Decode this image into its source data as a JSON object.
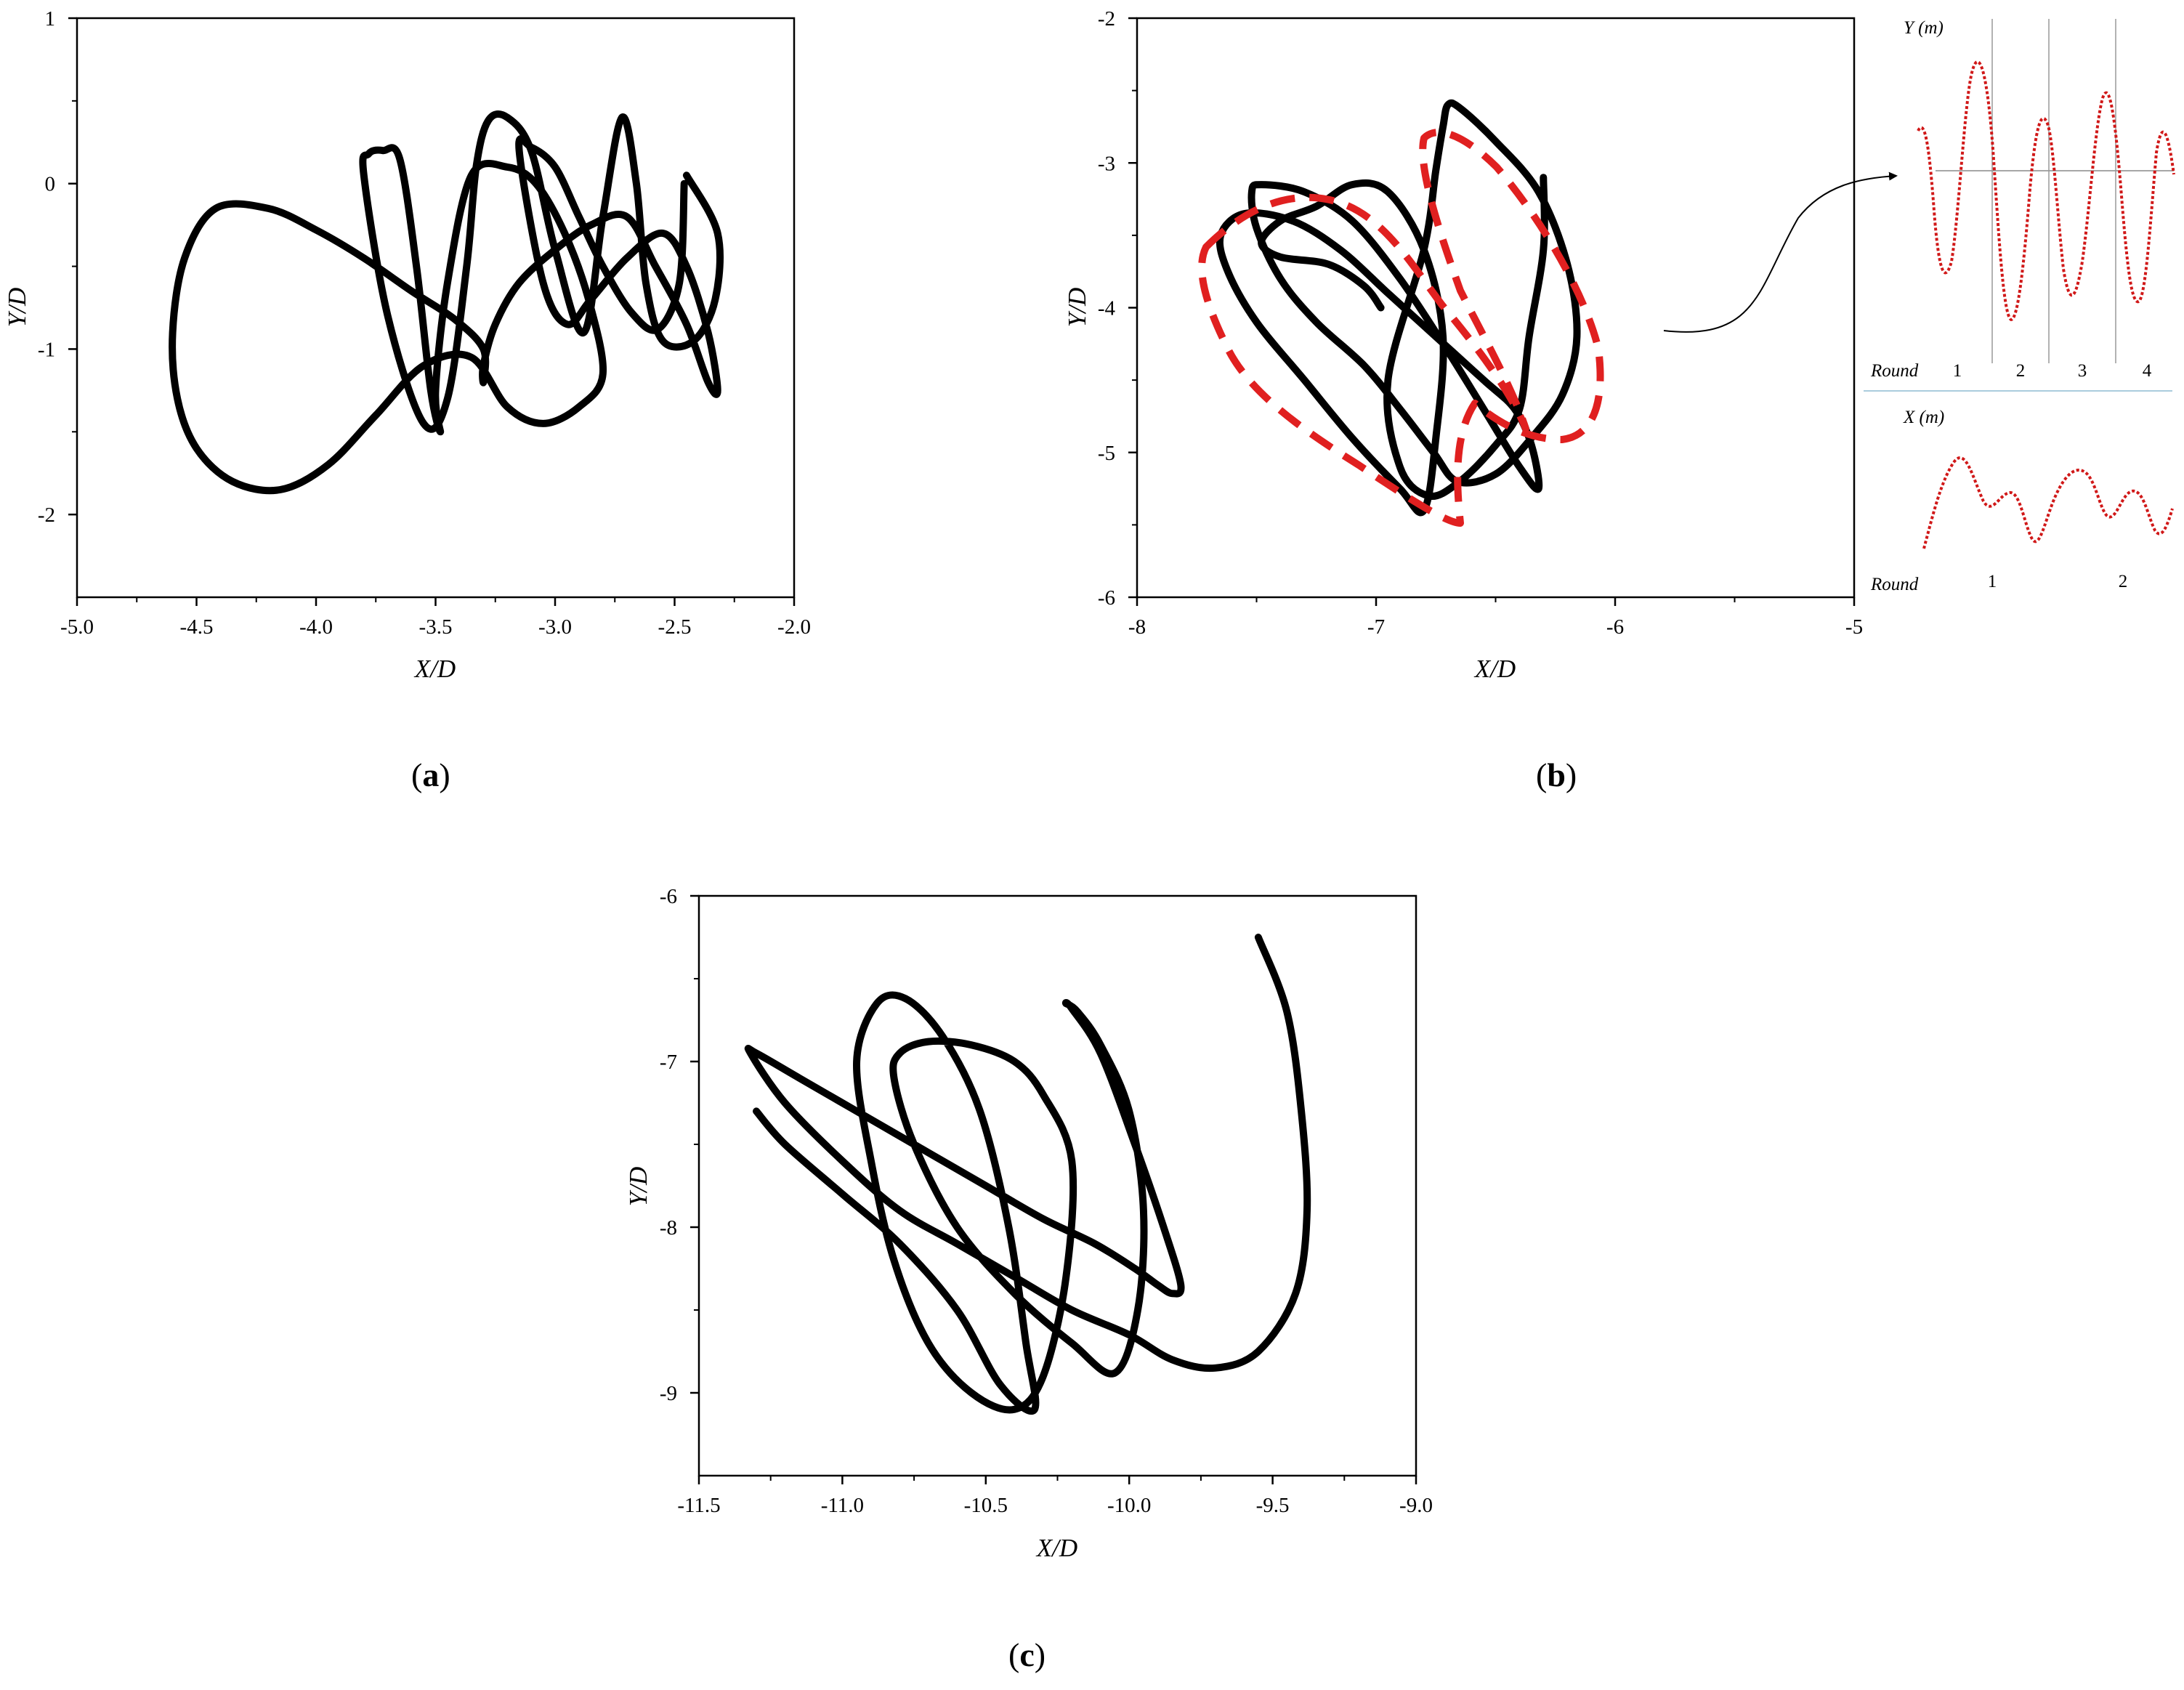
{
  "chart_data": [
    {
      "type": "line",
      "panel": "a",
      "xlabel": "X/D",
      "ylabel": "Y/D",
      "xlim": [
        -5.0,
        -2.0
      ],
      "ylim": [
        -2.5,
        1.0
      ],
      "xticks": [
        "-5.0",
        "-4.5",
        "-4.0",
        "-3.5",
        "-3.0",
        "-2.5",
        "-2.0"
      ],
      "yticks": [
        "1",
        "0",
        "-1",
        "-2"
      ],
      "series": [
        {
          "x": [
            -2.45,
            -2.32,
            -2.33,
            -2.42,
            -2.55,
            -2.62,
            -2.66,
            -2.72,
            -2.8,
            -2.88,
            -3.0,
            -3.1,
            -3.2,
            -3.28,
            -3.33,
            -3.37,
            -3.45,
            -3.55,
            -3.7,
            -3.8,
            -3.78,
            -3.72,
            -3.65,
            -3.58,
            -3.52,
            -3.48,
            -3.5,
            -3.45,
            -3.35,
            -3.2,
            -3.08,
            -2.96,
            -2.86,
            -2.8,
            -2.9,
            -3.05,
            -3.2,
            -3.35,
            -3.55,
            -3.75,
            -3.95,
            -4.15,
            -4.35,
            -4.5,
            -4.58,
            -4.6,
            -4.55,
            -4.42,
            -4.2,
            -4.0,
            -3.8,
            -3.6,
            -3.42,
            -3.3,
            -3.3,
            -3.3,
            -3.25,
            -3.15,
            -3.0,
            -2.85,
            -2.7,
            -2.58,
            -2.45,
            -2.36,
            -2.32,
            -2.36,
            -2.45,
            -2.55,
            -2.7,
            -2.85,
            -2.95,
            -3.05,
            -3.15,
            -3.1,
            -3.0,
            -2.9,
            -2.8,
            -2.68,
            -2.57,
            -2.48,
            -2.46
          ],
          "y": [
            0.05,
            -0.3,
            -0.7,
            -0.95,
            -0.95,
            -0.6,
            0.0,
            0.4,
            -0.2,
            -0.9,
            -0.4,
            0.2,
            0.4,
            0.38,
            0.1,
            -0.5,
            -1.3,
            -1.45,
            -0.8,
            0.05,
            0.18,
            0.2,
            0.15,
            -0.5,
            -1.25,
            -1.5,
            -1.25,
            -0.6,
            0.05,
            0.1,
            0.0,
            -0.3,
            -0.7,
            -1.15,
            -1.35,
            -1.45,
            -1.35,
            -1.05,
            -1.1,
            -1.4,
            -1.7,
            -1.85,
            -1.8,
            -1.6,
            -1.3,
            -0.9,
            -0.45,
            -0.15,
            -0.15,
            -0.28,
            -0.45,
            -0.65,
            -0.82,
            -1.0,
            -1.2,
            -1.1,
            -0.85,
            -0.6,
            -0.4,
            -0.25,
            -0.2,
            -0.5,
            -0.85,
            -1.2,
            -1.25,
            -0.9,
            -0.5,
            -0.3,
            -0.45,
            -0.7,
            -0.85,
            -0.6,
            0.2,
            0.22,
            0.1,
            -0.2,
            -0.5,
            -0.78,
            -0.88,
            -0.6,
            0.0
          ]
        }
      ]
    },
    {
      "type": "line",
      "panel": "b",
      "xlabel": "X/D",
      "ylabel": "Y/D",
      "xlim": [
        -8,
        -5
      ],
      "ylim": [
        -6,
        -2
      ],
      "xticks": [
        "-8",
        "-7",
        "-6",
        "-5"
      ],
      "yticks": [
        "-2",
        "-3",
        "-4",
        "-5",
        "-6"
      ],
      "series": [
        {
          "x": [
            -6.3,
            -6.3,
            -6.36,
            -6.4,
            -6.5,
            -6.65,
            -6.78,
            -6.9,
            -6.95,
            -6.8,
            -6.75,
            -6.72,
            -6.7,
            -6.65,
            -6.5,
            -6.32,
            -6.2,
            -6.16,
            -6.22,
            -6.35,
            -6.5,
            -6.66,
            -6.76,
            -6.9,
            -7.05,
            -7.25,
            -7.4,
            -7.5,
            -7.52,
            -7.48,
            -7.3,
            -7.1,
            -6.9,
            -6.7,
            -6.55,
            -6.4,
            -6.32,
            -6.35,
            -6.42,
            -6.55,
            -6.75,
            -6.95,
            -7.15,
            -7.35,
            -7.55,
            -7.65,
            -7.62,
            -7.5,
            -7.3,
            -7.1,
            -6.9,
            -6.8,
            -6.75,
            -6.72,
            -6.8,
            -6.95,
            -7.1,
            -7.25,
            -7.4,
            -7.48,
            -7.4,
            -7.2,
            -7.05,
            -6.98
          ],
          "y": [
            -3.1,
            -3.6,
            -4.2,
            -4.7,
            -4.95,
            -5.2,
            -5.3,
            -5.1,
            -4.5,
            -3.6,
            -3.05,
            -2.75,
            -2.6,
            -2.62,
            -2.85,
            -3.2,
            -3.7,
            -4.2,
            -4.6,
            -4.9,
            -5.15,
            -5.2,
            -5.0,
            -4.7,
            -4.4,
            -4.1,
            -3.8,
            -3.45,
            -3.2,
            -3.15,
            -3.2,
            -3.4,
            -3.8,
            -4.3,
            -4.7,
            -5.1,
            -5.25,
            -4.95,
            -4.7,
            -4.5,
            -4.2,
            -3.9,
            -3.6,
            -3.4,
            -3.35,
            -3.5,
            -3.75,
            -4.1,
            -4.5,
            -4.9,
            -5.25,
            -5.4,
            -4.9,
            -4.2,
            -3.6,
            -3.2,
            -3.15,
            -3.3,
            -3.4,
            -3.55,
            -3.65,
            -3.7,
            -3.85,
            -4.0
          ]
        }
      ],
      "inset_y": {
        "title": "Y (m)",
        "round_label": "Round",
        "rounds": [
          "1",
          "2",
          "3",
          "4"
        ]
      },
      "inset_x": {
        "title": "X (m)",
        "round_label": "Round",
        "rounds": [
          "1",
          "2"
        ]
      }
    },
    {
      "type": "line",
      "panel": "c",
      "xlabel": "X/D",
      "ylabel": "Y/D",
      "xlim": [
        -11.5,
        -9.0
      ],
      "ylim": [
        -9.5,
        -6.0
      ],
      "xticks": [
        "-11.5",
        "-11.0",
        "-10.5",
        "-10.0",
        "-9.5",
        "-9.0"
      ],
      "yticks": [
        "-6",
        "-7",
        "-8",
        "-9"
      ],
      "series": [
        {
          "x": [
            -9.55,
            -9.45,
            -9.4,
            -9.38,
            -9.42,
            -9.55,
            -9.7,
            -9.85,
            -10.0,
            -10.2,
            -10.4,
            -10.6,
            -10.8,
            -11.0,
            -11.2,
            -11.32,
            -11.3,
            -11.15,
            -10.9,
            -10.7,
            -10.5,
            -10.3,
            -10.12,
            -9.98,
            -9.9,
            -9.85,
            -9.82,
            -9.88,
            -9.98,
            -10.1,
            -10.2,
            -10.22,
            -10.18,
            -10.1,
            -10.0,
            -9.95,
            -9.97,
            -10.05,
            -10.2,
            -10.4,
            -10.6,
            -10.75,
            -10.82,
            -10.8,
            -10.7,
            -10.55,
            -10.4,
            -10.3,
            -10.2,
            -10.22,
            -10.3,
            -10.4,
            -10.55,
            -10.7,
            -10.82,
            -10.9,
            -10.95,
            -10.88,
            -10.78,
            -10.65,
            -10.52,
            -10.42,
            -10.36,
            -10.33,
            -10.45,
            -10.6,
            -10.8,
            -11.0,
            -11.2,
            -11.3
          ],
          "y": [
            -6.25,
            -6.7,
            -7.3,
            -7.9,
            -8.4,
            -8.75,
            -8.85,
            -8.8,
            -8.65,
            -8.5,
            -8.3,
            -8.1,
            -7.9,
            -7.6,
            -7.25,
            -6.95,
            -6.95,
            -7.1,
            -7.35,
            -7.55,
            -7.75,
            -7.95,
            -8.1,
            -8.25,
            -8.35,
            -8.4,
            -8.35,
            -8.0,
            -7.5,
            -6.95,
            -6.68,
            -6.65,
            -6.7,
            -6.9,
            -7.3,
            -7.9,
            -8.5,
            -8.88,
            -8.7,
            -8.4,
            -8.0,
            -7.5,
            -7.1,
            -6.95,
            -6.88,
            -6.9,
            -7.0,
            -7.2,
            -7.6,
            -8.3,
            -8.9,
            -9.1,
            -9.0,
            -8.7,
            -8.2,
            -7.6,
            -7.0,
            -6.65,
            -6.62,
            -6.85,
            -7.3,
            -8.0,
            -8.7,
            -9.1,
            -8.95,
            -8.5,
            -8.1,
            -7.8,
            -7.5,
            -7.3
          ]
        }
      ]
    }
  ],
  "captions": {
    "a": "a",
    "b": "b",
    "c": "c"
  }
}
